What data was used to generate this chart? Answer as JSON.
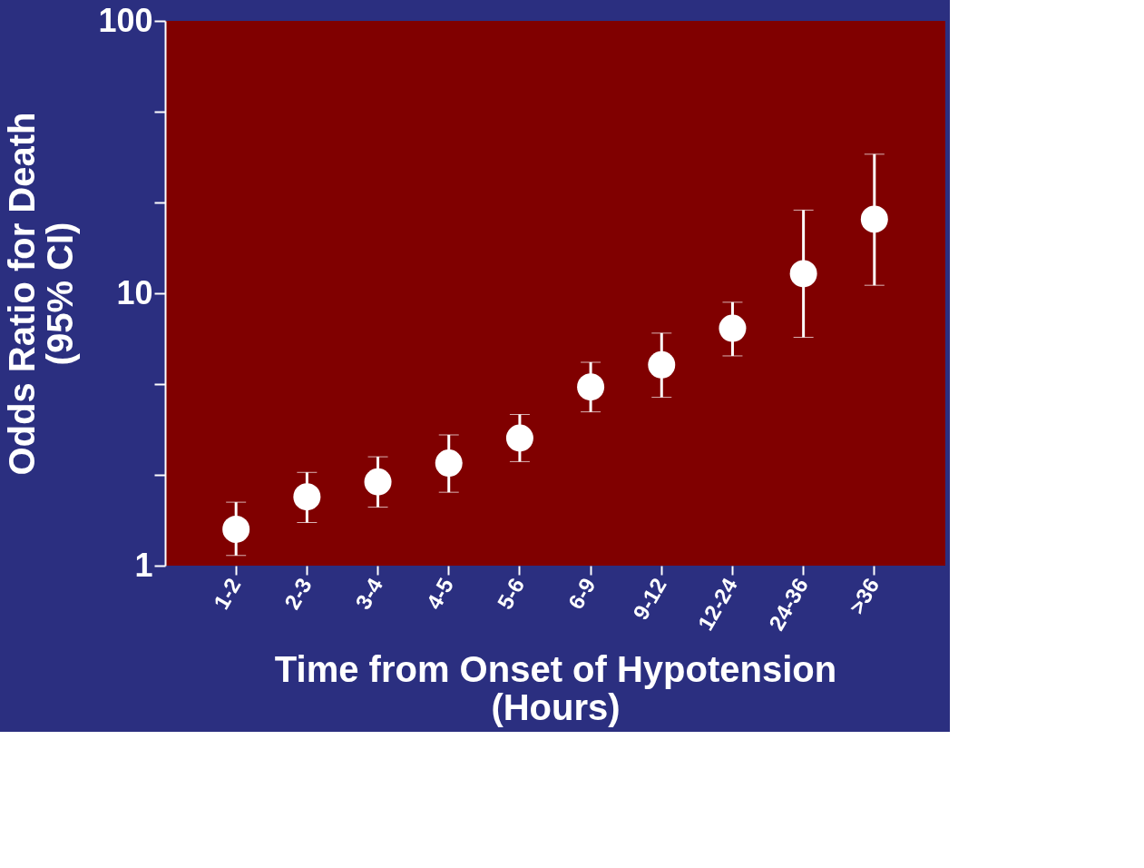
{
  "chart_data": {
    "type": "scatter",
    "xlabel": "Time from Onset of Hypotension\n(Hours)",
    "ylabel": "Odds Ratio for Death\n(95% CI)",
    "categories": [
      "1-2",
      "2-3",
      "3-4",
      "4-5",
      "5-6",
      "6-9",
      "9-12",
      "12-24",
      "24-36",
      ">36"
    ],
    "series": [
      {
        "color": "#ffffff",
        "values": [
          1.36,
          1.79,
          2.03,
          2.38,
          2.94,
          4.53,
          5.46,
          7.44,
          11.8,
          18.7
        ],
        "errors": [
          [
            1.09,
            1.71
          ],
          [
            1.44,
            2.2
          ],
          [
            1.64,
            2.51
          ],
          [
            1.86,
            3.02
          ],
          [
            2.41,
            3.59
          ],
          [
            3.67,
            5.58
          ],
          [
            4.15,
            7.14
          ],
          [
            5.89,
            9.27
          ],
          [
            6.89,
            20.2
          ],
          [
            10.7,
            32.4
          ]
        ]
      }
    ],
    "log": "y",
    "ylim": [
      1,
      100
    ],
    "yticks": [
      1,
      {
        "value": 2.15,
        "label": null
      },
      {
        "value": 4.64,
        "label": null
      },
      10,
      {
        "value": 21.5,
        "label": null
      },
      {
        "value": 46.4,
        "label": null
      },
      100
    ],
    "grid": false,
    "marker": "circle"
  }
}
